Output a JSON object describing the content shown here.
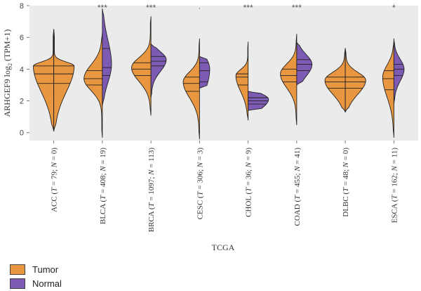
{
  "chart_data": {
    "type": "violin",
    "xlabel": "TCGA",
    "ylabel_main": "ARHGEF9 log",
    "ylabel_sub": "2",
    "ylabel_tail": " (TPM+1)",
    "ylim": [
      -0.5,
      8
    ],
    "yticks": [
      0,
      2,
      4,
      6,
      8
    ],
    "background": "#ebebeb",
    "colors": {
      "tumor": "#e8963f",
      "normal": "#7d5bb5"
    },
    "legend": [
      {
        "key": "tumor",
        "label": "Tumor"
      },
      {
        "key": "normal",
        "label": "Normal"
      }
    ],
    "categories": [
      {
        "name": "ACC",
        "t": "79",
        "n": "0",
        "sig": "",
        "tumor": {
          "min": 0.1,
          "max": 6.5,
          "q1": 3.1,
          "median": 3.7,
          "q3": 4.2,
          "mode": 4.2,
          "width": 1.0
        },
        "normal": null
      },
      {
        "name": "BLCA",
        "t": "408",
        "n": "19",
        "sig": "***",
        "tumor": {
          "min": -0.3,
          "max": 6.3,
          "q1": 3.0,
          "median": 3.4,
          "q3": 3.9,
          "mode": 3.4,
          "width": 0.9
        },
        "normal": {
          "min": 1.7,
          "max": 7.8,
          "q1": 3.6,
          "median": 4.1,
          "q3": 5.3,
          "mode": 4.3,
          "width": 0.45
        }
      },
      {
        "name": "BRCA",
        "t": "1097",
        "n": "113",
        "sig": "***",
        "tumor": {
          "min": 1.1,
          "max": 7.3,
          "q1": 3.6,
          "median": 4.0,
          "q3": 4.4,
          "mode": 4.1,
          "width": 0.95
        },
        "normal": {
          "min": 2.2,
          "max": 5.6,
          "q1": 4.2,
          "median": 4.5,
          "q3": 4.8,
          "mode": 4.6,
          "width": 0.75
        }
      },
      {
        "name": "CESC",
        "t": "306",
        "n": "3",
        "sig": "·",
        "tumor": {
          "min": -0.4,
          "max": 5.9,
          "q1": 2.6,
          "median": 3.1,
          "q3": 3.5,
          "mode": 3.2,
          "width": 0.8
        },
        "normal": {
          "min": 2.8,
          "max": 4.8,
          "q1": 3.2,
          "median": 3.9,
          "q3": 4.4,
          "mode": 4.0,
          "width": 0.5
        }
      },
      {
        "name": "CHOL",
        "t": "36",
        "n": "9",
        "sig": "***",
        "tumor": {
          "min": 0.8,
          "max": 5.7,
          "q1": 3.0,
          "median": 3.5,
          "q3": 3.7,
          "mode": 3.6,
          "width": 0.6
        },
        "normal": {
          "min": 1.4,
          "max": 2.6,
          "q1": 1.8,
          "median": 2.0,
          "q3": 2.2,
          "mode": 2.1,
          "width": 1.0
        }
      },
      {
        "name": "COAD",
        "t": "455",
        "n": "41",
        "sig": "***",
        "tumor": {
          "min": 0.5,
          "max": 6.2,
          "q1": 3.2,
          "median": 3.6,
          "q3": 4.0,
          "mode": 3.7,
          "width": 0.8
        },
        "normal": {
          "min": 3.0,
          "max": 5.7,
          "q1": 3.9,
          "median": 4.3,
          "q3": 4.6,
          "mode": 4.3,
          "width": 0.75
        }
      },
      {
        "name": "DLBC",
        "t": "48",
        "n": "0",
        "sig": "",
        "tumor": {
          "min": 1.3,
          "max": 5.3,
          "q1": 2.8,
          "median": 3.2,
          "q3": 3.5,
          "mode": 3.3,
          "width": 1.0
        },
        "normal": null
      },
      {
        "name": "ESCA",
        "t": "162",
        "n": "11",
        "sig": "*",
        "tumor": {
          "min": -0.3,
          "max": 5.8,
          "q1": 2.7,
          "median": 3.4,
          "q3": 3.9,
          "mode": 3.5,
          "width": 0.55
        },
        "normal": {
          "min": 1.8,
          "max": 5.9,
          "q1": 3.6,
          "median": 4.0,
          "q3": 4.3,
          "mode": 4.0,
          "width": 0.5
        }
      }
    ]
  }
}
